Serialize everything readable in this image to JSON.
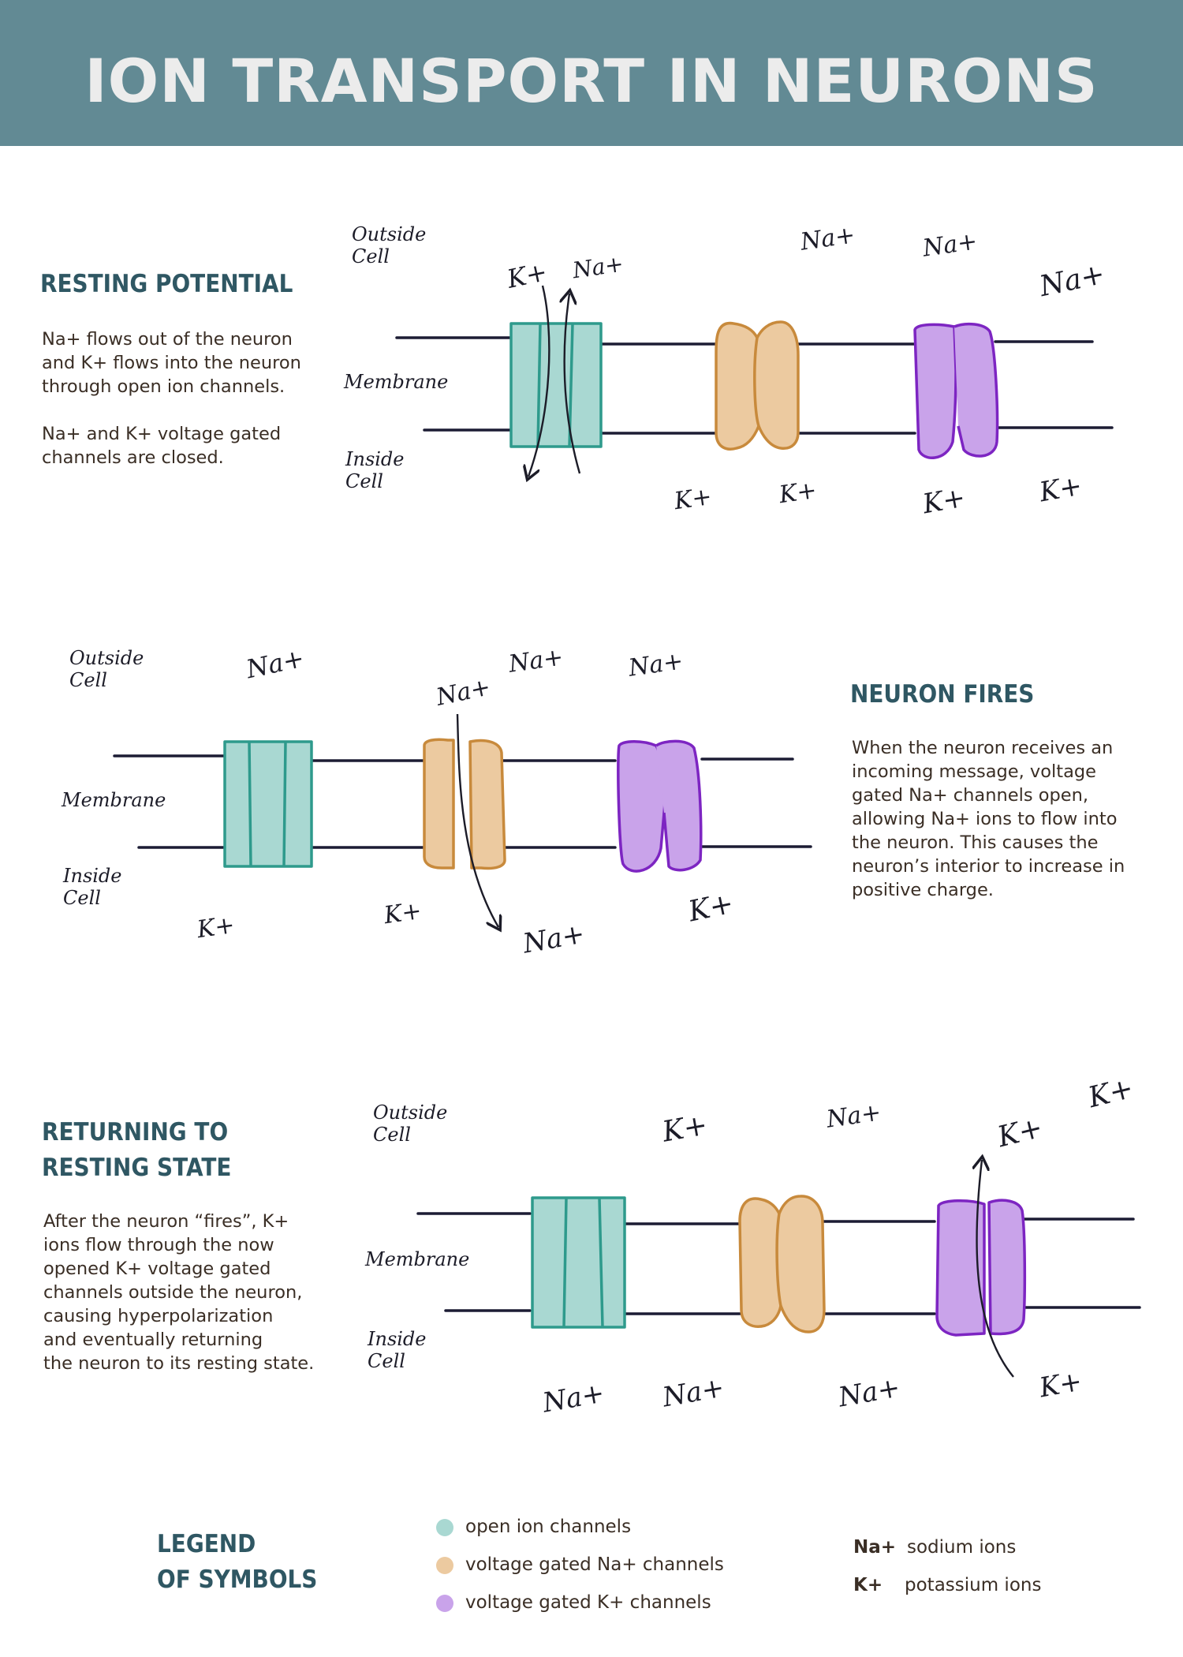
{
  "title": "ION TRANSPORT IN NEURONS",
  "labels": {
    "outside": "Outside Cell",
    "membrane": "Membrane",
    "inside": "Inside Cell"
  },
  "ions": {
    "na": "Na+",
    "k": "K+"
  },
  "sections": [
    {
      "title": "RESTING POTENTIAL",
      "text": "Na+ flows out of the neuron\nand K+ flows into the neuron\nthrough open ion channels.\n\nNa+ and K+ voltage gated\nchannels are closed."
    },
    {
      "title": "NEURON FIRES",
      "text": "When the neuron receives an\nincoming message, voltage\ngated Na+ channels open,\nallowing Na+ ions to flow into\nthe neuron. This causes the\nneuron’s interior to increase in\npositive charge."
    },
    {
      "title": "RETURNING TO\nRESTING STATE",
      "text": "After the neuron “fires”, K+\nions flow through the now\nopened K+ voltage gated\nchannels outside the neuron,\ncausing hyperpolarization\nand eventually returning\nthe neuron to its resting state."
    }
  ],
  "legend": {
    "title": "LEGEND\nOF SYMBOLS",
    "items": [
      {
        "label": "open ion channels",
        "color": "#a9d8d2"
      },
      {
        "label": "voltage gated Na+ channels",
        "color": "#eccaa0"
      },
      {
        "label": "voltage gated K+ channels",
        "color": "#c9a3ea"
      }
    ],
    "keys": [
      {
        "symbol": "Na+",
        "meaning": "sodium ions"
      },
      {
        "symbol": "K+",
        "meaning": "potassium ions"
      }
    ]
  },
  "colors": {
    "header": "#628a94",
    "section_title": "#2f5763",
    "open_fill": "#a9d8d2",
    "open_stroke": "#2e9a8c",
    "na_fill": "#eccaa0",
    "na_stroke": "#c88a3c",
    "k_fill": "#c9a3ea",
    "k_stroke": "#7d25c2",
    "membrane": "#1c1c34"
  }
}
